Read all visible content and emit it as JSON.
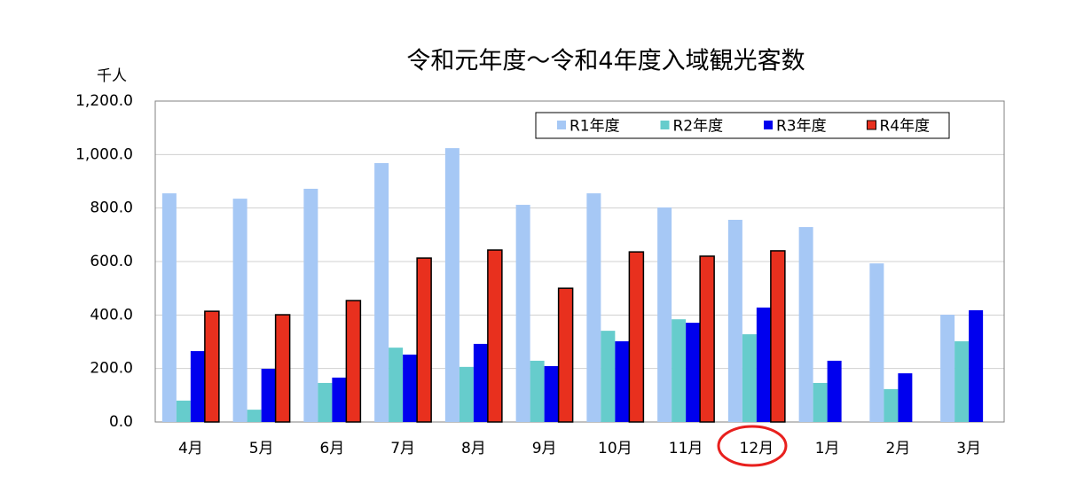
{
  "chart_data": {
    "type": "bar",
    "title": "令和元年度～令和4年度入域観光客数",
    "y_unit": "千人",
    "categories": [
      "4月",
      "5月",
      "6月",
      "7月",
      "8月",
      "9月",
      "10月",
      "11月",
      "12月",
      "1月",
      "2月",
      "3月"
    ],
    "series": [
      {
        "name": "R1年度",
        "color": "#a6c8f5",
        "values": [
          855,
          835,
          872,
          968,
          1024,
          812,
          855,
          802,
          756,
          729,
          593,
          401
        ]
      },
      {
        "name": "R2年度",
        "color": "#66cccc",
        "values": [
          80,
          46,
          146,
          278,
          206,
          229,
          341,
          384,
          328,
          146,
          123,
          302
        ]
      },
      {
        "name": "R3年度",
        "color": "#0000ee",
        "values": [
          265,
          199,
          166,
          252,
          292,
          209,
          302,
          371,
          428,
          229,
          182,
          418
        ]
      },
      {
        "name": "R4年度",
        "color": "#e8301e",
        "values": [
          414,
          401,
          454,
          613,
          643,
          500,
          636,
          620,
          640,
          null,
          null,
          null
        ]
      }
    ],
    "ylim": [
      0,
      1200
    ],
    "yticks": [
      {
        "value": 0,
        "label": "0.0"
      },
      {
        "value": 200,
        "label": "200.0"
      },
      {
        "value": 400,
        "label": "400.0"
      },
      {
        "value": 600,
        "label": "600.0"
      },
      {
        "value": 800,
        "label": "800.0"
      },
      {
        "value": 1000,
        "label": "1,000.0"
      },
      {
        "value": 1200,
        "label": "1,200.0"
      }
    ],
    "grid": true,
    "legend": "top-right"
  }
}
